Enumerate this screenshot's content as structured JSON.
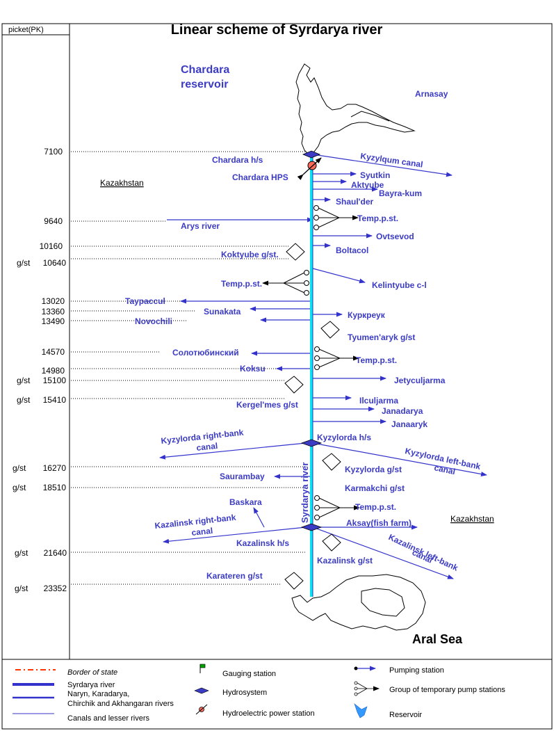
{
  "title": "Linear scheme of Syrdarya river",
  "column_header": "picket(PK)",
  "colors": {
    "label": "#3b3bc4",
    "river": "#00e5ee",
    "canal": "#3333cc",
    "border": "#ff3300"
  },
  "pickets": [
    {
      "prefix": "",
      "value": "7100"
    },
    {
      "prefix": "",
      "value": "9640"
    },
    {
      "prefix": "",
      "value": "10160"
    },
    {
      "prefix": "g/st",
      "value": "10640"
    },
    {
      "prefix": "",
      "value": "13020"
    },
    {
      "prefix": "",
      "value": "13360"
    },
    {
      "prefix": "",
      "value": "13490"
    },
    {
      "prefix": "",
      "value": "14570"
    },
    {
      "prefix": "",
      "value": "14980"
    },
    {
      "prefix": "g/st",
      "value": "15100"
    },
    {
      "prefix": "g/st",
      "value": "15410"
    },
    {
      "prefix": "g/st",
      "value": "16270"
    },
    {
      "prefix": "g/st",
      "value": "18510"
    },
    {
      "prefix": "g/st",
      "value": "21640"
    },
    {
      "prefix": "g/st",
      "value": "23352"
    }
  ],
  "labels": {
    "chardara_res_1": "Chardara",
    "chardara_res_2": "reservoir",
    "arnasay": "Arnasay",
    "chardara_hs": "Chardara h/s",
    "kyzylqum": "Kyzylqum canal",
    "chardara_hps": "Chardara HPS",
    "kazakhstan": "Kazakhstan",
    "syutkin": "Syutkin",
    "aktyube": "Aktyube",
    "bayra_kum": "Bayra-kum",
    "shaulder": "Shaul'der",
    "temp1": "Temp.p.st.",
    "arys": "Arys river",
    "ovtsevod": "Ovtsevod",
    "boltacol": "Boltacol",
    "koktyube": "Koktyube g/st.",
    "temp2": "Temp.p.st.",
    "kelintyube": "Kelintyube c-l",
    "taypaccul": "Taypaccul",
    "sunakata": "Sunakata",
    "novochili": "Novochili",
    "kurkreuk": "Куркреук",
    "tyumenaryk": "Tyumen'aryk g/st",
    "solotyub": "Солотюбинский",
    "temp3": "Temp.p.st.",
    "koksu": "Koksu",
    "jetyculjarma": "Jetyculjarma",
    "kergelmes": "Kergel'mes g/st",
    "ilculjarma": "Ilculjarma",
    "janadarya": "Janadarya",
    "janaaryk": "Janaaryk",
    "kzl_right_1": "Kyzylorda right-bank",
    "kzl_right_2": "canal",
    "kzl_hs": "Kyzylorda h/s",
    "kzl_left_1": "Kyzylorda left-bank",
    "kzl_left_2": "canal",
    "syrdarya_river": "Syrdarya river",
    "kzl_gst": "Kyzylorda g/st",
    "saurambay": "Saurambay",
    "karmakchi": "Karmakchi g/st",
    "baskara": "Baskara",
    "temp4": "Temp.p.st.",
    "kaz_right_1": "Kazalinsk right-bank",
    "kaz_right_2": "canal",
    "aksay": "Aksay(fish farm)",
    "kazakhstan2": "Kazakhstan",
    "kaz_hs": "Kazalinsk h/s",
    "kaz_left_1": "Kazalinsk left-bank",
    "kaz_left_2": "canal",
    "kaz_gst": "Kazalinsk g/st",
    "karateren": "Karateren g/st",
    "aral": "Aral Sea"
  },
  "legend": {
    "border": "Border of state",
    "syrdarya": "Syrdarya river",
    "naryn_1": "Naryn, Karadarya,",
    "naryn_2": "Chirchik and Akhangaran rivers",
    "canals": "Canals and lesser rivers",
    "gauging": "Gauging station",
    "hydrosystem": "Hydrosystem",
    "hps": "Hydroelectric power station",
    "pumping": "Pumping station",
    "group_temp": "Group of temporary pump stations",
    "reservoir": "Reservoir"
  }
}
